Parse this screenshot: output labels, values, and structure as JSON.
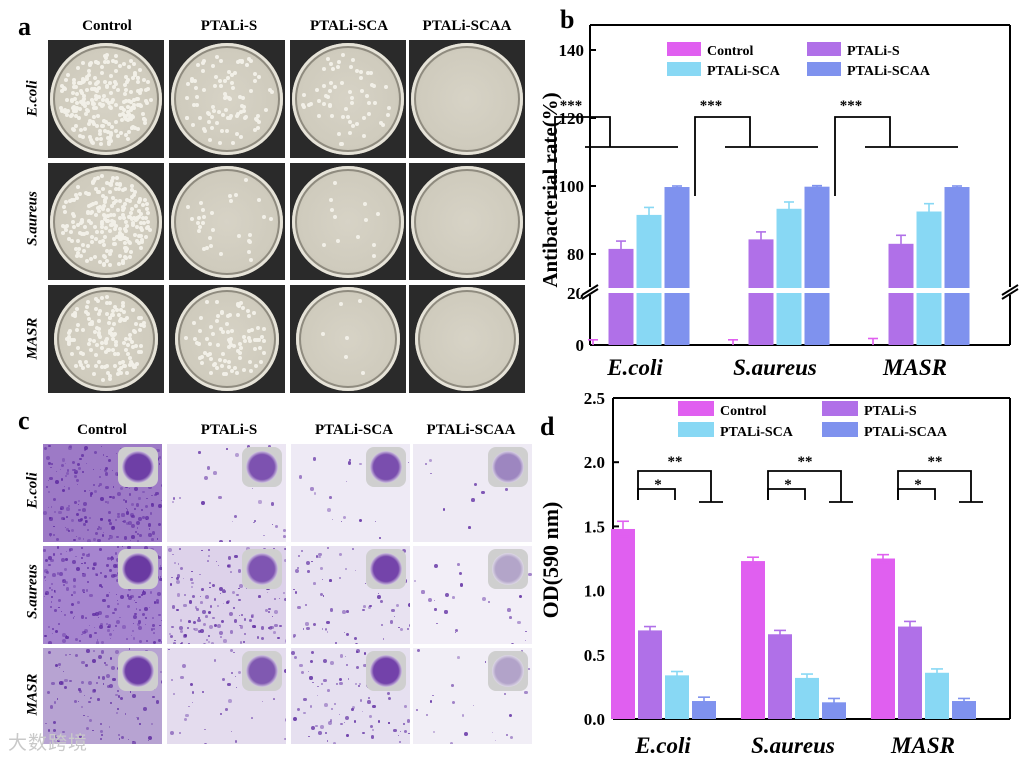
{
  "panels": {
    "a": "a",
    "b": "b",
    "c": "c",
    "d": "d"
  },
  "groups": [
    "Control",
    "PTALi-S",
    "PTALi-SCA",
    "PTALi-SCAA"
  ],
  "rows": [
    "E.coli",
    "S.aureus",
    "MASR"
  ],
  "watermark": "大数跨境",
  "colors": {
    "Control": "#e05ff0",
    "PTALi-S": "#b070e8",
    "PTALi-SCA": "#88d8f4",
    "PTALi-SCAA": "#7f92ee"
  },
  "chart_data": [
    {
      "id": "b",
      "type": "bar",
      "ylabel": "Antibacterial rate(%)",
      "categories": [
        "E.coli",
        "S.aureus",
        "MASR"
      ],
      "y_axis_break": [
        20,
        70
      ],
      "ylim_lower": [
        0,
        20
      ],
      "ylim_upper": [
        70,
        145
      ],
      "yticks_lower": [
        0,
        20
      ],
      "yticks_upper": [
        80,
        100,
        120,
        140
      ],
      "legend": "top",
      "significance": [
        {
          "category": "E.coli",
          "label": "***"
        },
        {
          "category": "S.aureus",
          "label": "***"
        },
        {
          "category": "MASR",
          "label": "***"
        }
      ],
      "series": [
        {
          "name": "Control",
          "values": [
            0,
            0,
            0
          ],
          "errors": [
            2,
            2,
            2.5
          ]
        },
        {
          "name": "PTALi-S",
          "values": [
            81.5,
            84.3,
            83
          ],
          "errors": [
            2.3,
            2.2,
            2.5
          ]
        },
        {
          "name": "PTALi-SCA",
          "values": [
            91.5,
            93.3,
            92.5
          ],
          "errors": [
            2.2,
            2,
            2.3
          ]
        },
        {
          "name": "PTALi-SCAA",
          "values": [
            99.7,
            99.8,
            99.7
          ],
          "errors": [
            0.3,
            0.3,
            0.3
          ]
        }
      ]
    },
    {
      "id": "d",
      "type": "bar",
      "ylabel": "OD(590 nm)",
      "categories": [
        "E.coli",
        "S.aureus",
        "MASR"
      ],
      "ylim": [
        0,
        2.5
      ],
      "yticks": [
        "0.0",
        "0.5",
        "1.0",
        "1.5",
        "2.0",
        "2.5"
      ],
      "legend": "top",
      "significance": [
        {
          "category": "E.coli",
          "inner": "*",
          "outer": "**"
        },
        {
          "category": "S.aureus",
          "inner": "*",
          "outer": "**"
        },
        {
          "category": "MASR",
          "inner": "*",
          "outer": "**"
        }
      ],
      "series": [
        {
          "name": "Control",
          "values": [
            1.48,
            1.23,
            1.25
          ],
          "errors": [
            0.06,
            0.03,
            0.03
          ]
        },
        {
          "name": "PTALi-S",
          "values": [
            0.69,
            0.66,
            0.72
          ],
          "errors": [
            0.03,
            0.03,
            0.04
          ]
        },
        {
          "name": "PTALi-SCA",
          "values": [
            0.34,
            0.32,
            0.36
          ],
          "errors": [
            0.03,
            0.03,
            0.03
          ]
        },
        {
          "name": "PTALi-SCAA",
          "values": [
            0.14,
            0.13,
            0.14
          ],
          "errors": [
            0.03,
            0.03,
            0.02
          ]
        }
      ]
    }
  ]
}
